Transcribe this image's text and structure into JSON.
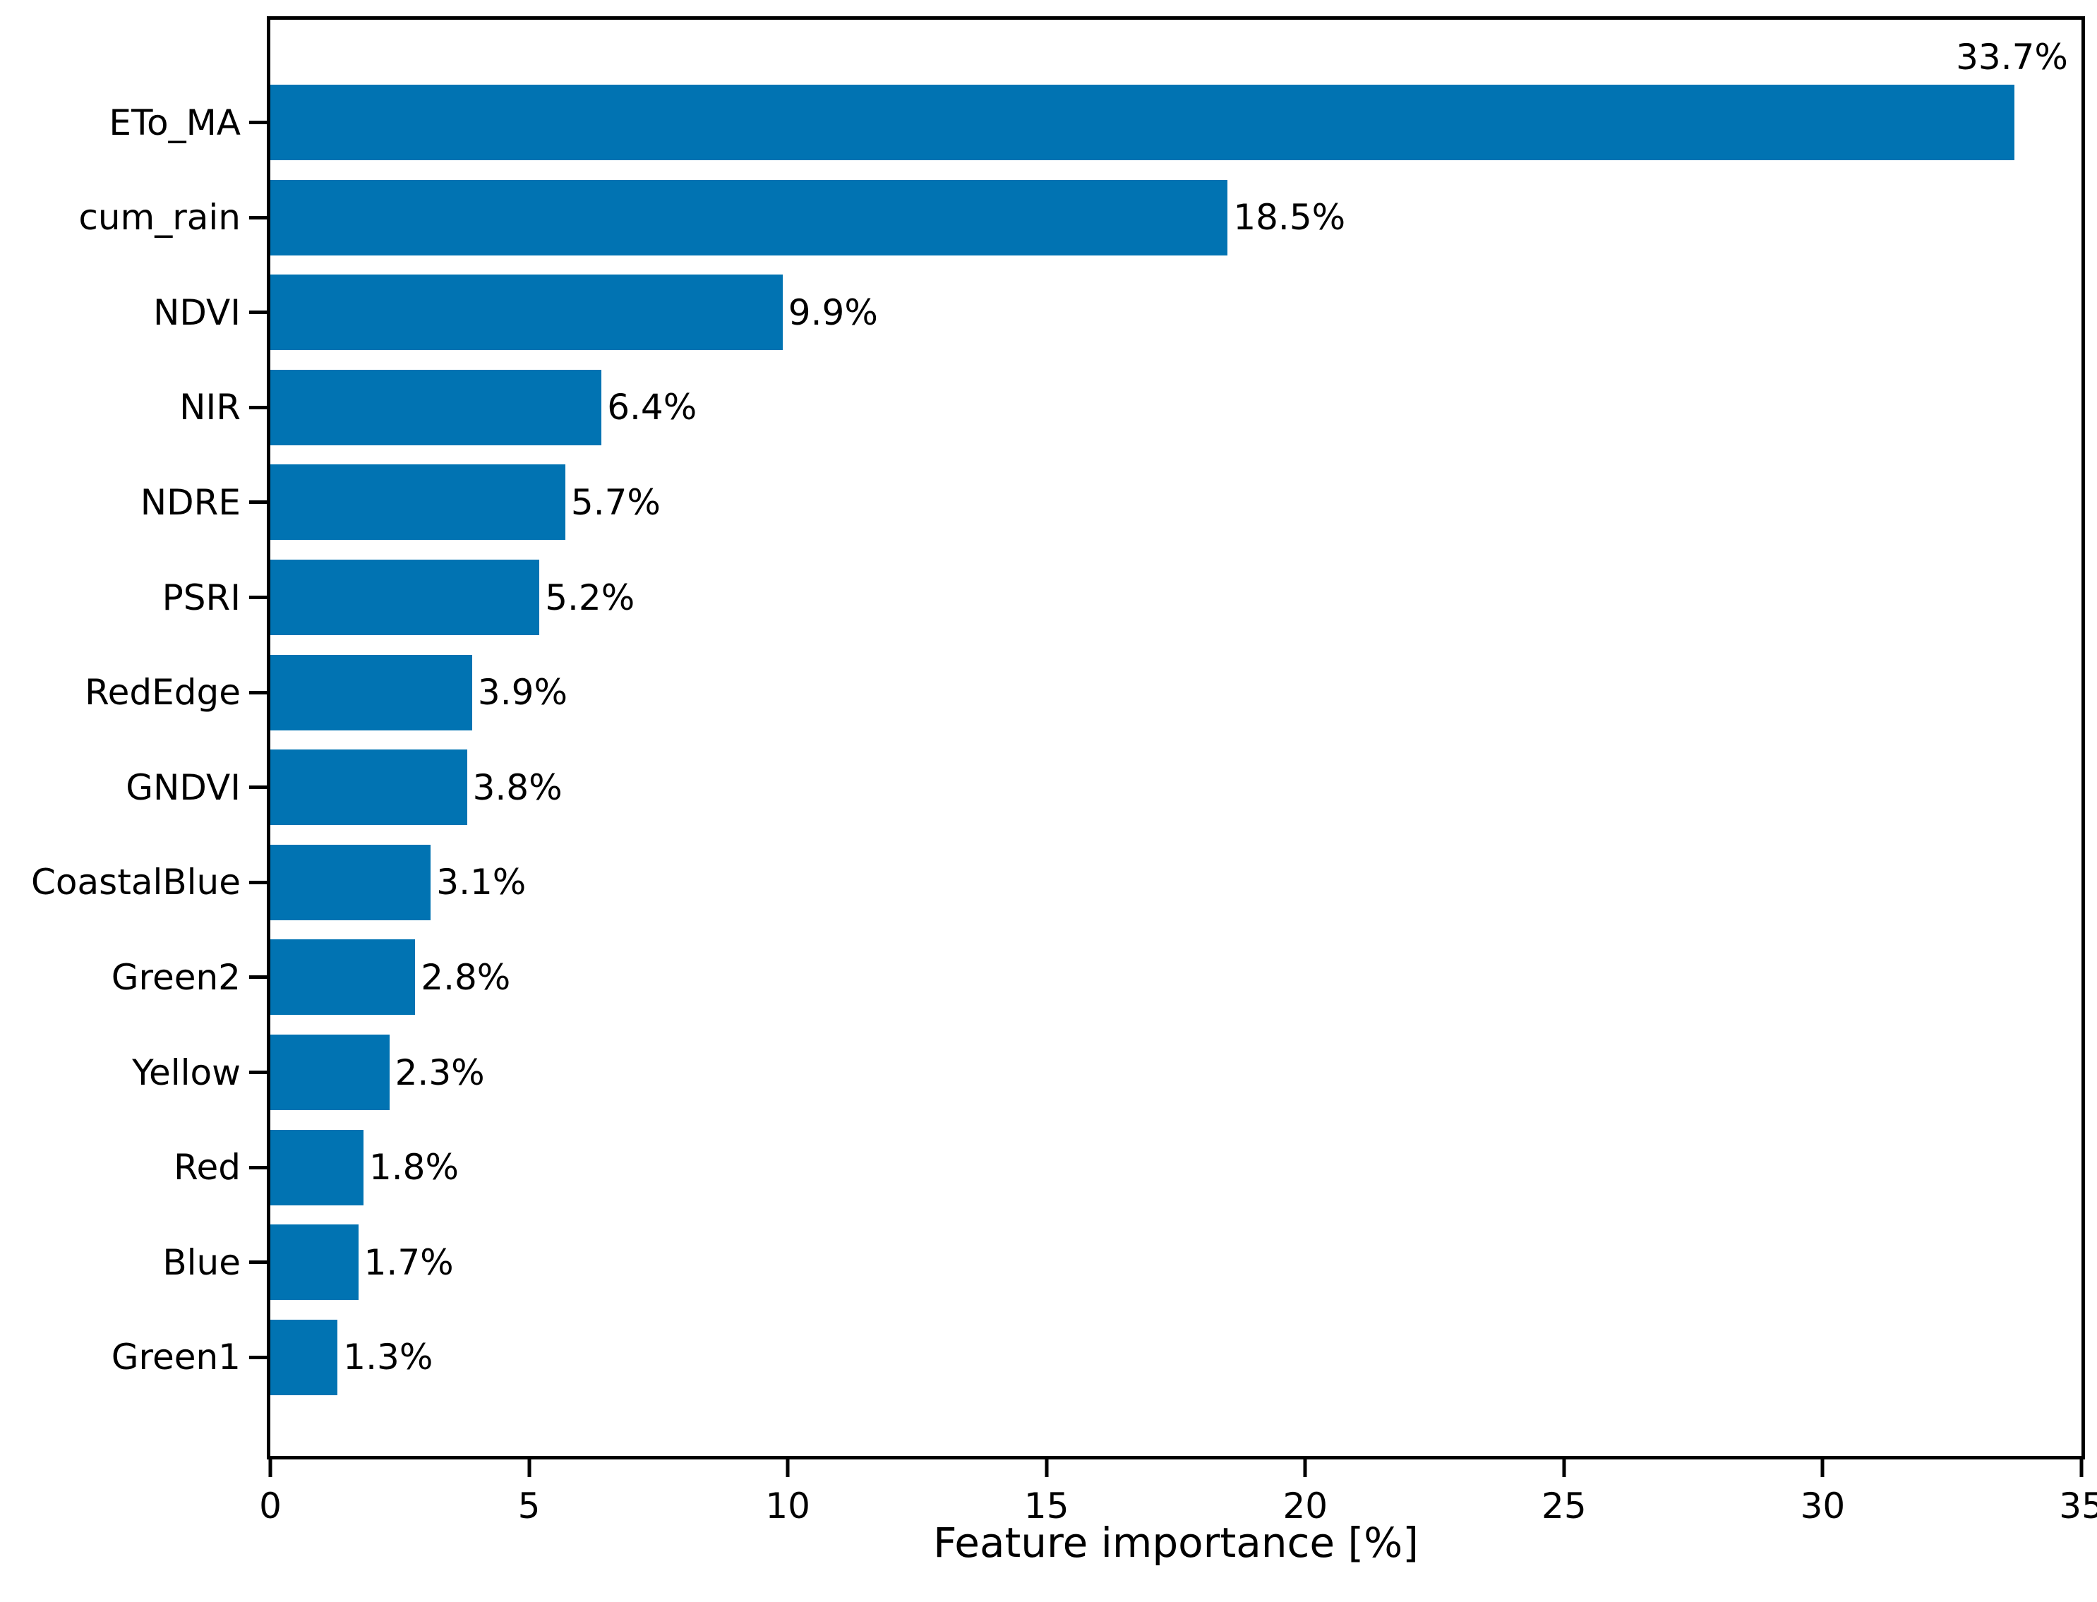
{
  "chart_data": {
    "type": "bar",
    "orientation": "horizontal",
    "title": "",
    "xlabel": "Feature importance [%]",
    "ylabel": "",
    "categories": [
      "ETo_MA",
      "cum_rain",
      "NDVI",
      "NIR",
      "NDRE",
      "PSRI",
      "RedEdge",
      "GNDVI",
      "CoastalBlue",
      "Green2",
      "Yellow",
      "Red",
      "Blue",
      "Green1"
    ],
    "values": [
      33.7,
      18.5,
      9.9,
      6.4,
      5.7,
      5.2,
      3.9,
      3.8,
      3.1,
      2.8,
      2.3,
      1.8,
      1.7,
      1.3
    ],
    "value_labels": [
      "33.7%",
      "18.5%",
      "9.9%",
      "6.4%",
      "5.7%",
      "5.2%",
      "3.9%",
      "3.8%",
      "3.1%",
      "2.8%",
      "2.3%",
      "1.8%",
      "1.7%",
      "1.3%"
    ],
    "xlim": [
      0,
      35
    ],
    "xticks": [
      0,
      5,
      10,
      15,
      20,
      25,
      30,
      35
    ],
    "grid": false,
    "legend": null,
    "bar_color": "#0173b2",
    "text_color": "#000000",
    "first_label_placement": "above-bar"
  }
}
